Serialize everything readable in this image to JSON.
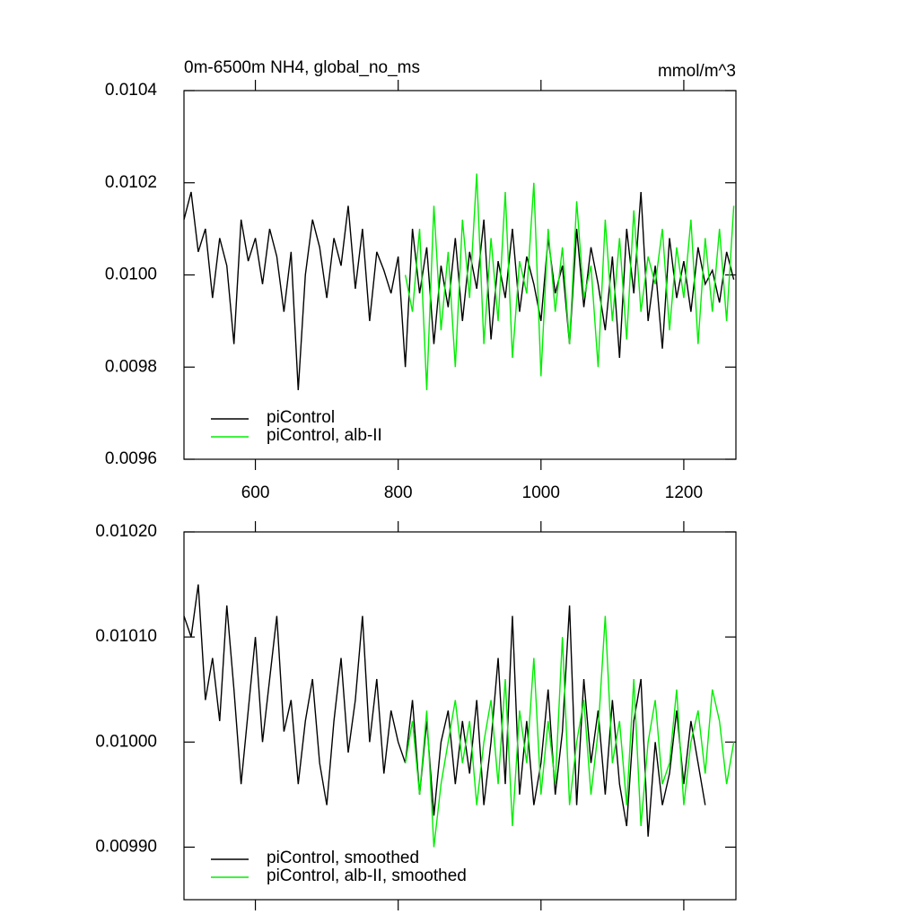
{
  "chart_data": [
    {
      "type": "line",
      "title": "0m-6500m NH4, global_no_ms",
      "units": "mmol/m^3",
      "xlim": [
        500,
        1273
      ],
      "xticks": [
        600,
        800,
        1000,
        1200
      ],
      "ylim": [
        0.0096,
        0.0104
      ],
      "yticks": [
        0.0096,
        0.0098,
        {
          "value": 0.01,
          "label": "0.0100"
        },
        0.0102,
        0.0104
      ],
      "legend": "lower left",
      "series": [
        {
          "name": "piControl",
          "color": "#000000",
          "x": [
            500,
            510,
            520,
            530,
            540,
            550,
            560,
            570,
            580,
            590,
            600,
            610,
            620,
            630,
            640,
            650,
            660,
            670,
            680,
            690,
            700,
            710,
            720,
            730,
            740,
            750,
            760,
            770,
            780,
            790,
            800,
            810,
            820,
            830,
            840,
            850,
            860,
            870,
            880,
            890,
            900,
            910,
            920,
            930,
            940,
            950,
            960,
            970,
            980,
            990,
            1000,
            1010,
            1020,
            1030,
            1040,
            1050,
            1060,
            1070,
            1080,
            1090,
            1100,
            1110,
            1120,
            1130,
            1140,
            1150,
            1160,
            1170,
            1180,
            1190,
            1200,
            1210,
            1220,
            1230,
            1240,
            1250,
            1260,
            1270
          ],
          "values": [
            0.01012,
            0.01018,
            0.01005,
            0.0101,
            0.00995,
            0.01008,
            0.01002,
            0.00985,
            0.01012,
            0.01003,
            0.01008,
            0.00998,
            0.0101,
            0.01004,
            0.00992,
            0.01005,
            0.00975,
            0.01,
            0.01012,
            0.01006,
            0.00995,
            0.01008,
            0.01002,
            0.01015,
            0.00997,
            0.0101,
            0.0099,
            0.01005,
            0.01001,
            0.00996,
            0.01004,
            0.0098,
            0.0101,
            0.00996,
            0.01006,
            0.00985,
            0.01002,
            0.00993,
            0.01008,
            0.0099,
            0.01005,
            0.00997,
            0.01012,
            0.00986,
            0.01003,
            0.00995,
            0.0101,
            0.00992,
            0.01004,
            0.00998,
            0.0099,
            0.01008,
            0.00996,
            0.01002,
            0.00985,
            0.0101,
            0.00993,
            0.01006,
            0.00998,
            0.00988,
            0.01004,
            0.00982,
            0.0101,
            0.00996,
            0.01018,
            0.0099,
            0.01002,
            0.00984,
            0.01008,
            0.00995,
            0.01003,
            0.00992,
            0.01006,
            0.00998,
            0.01001,
            0.00994,
            0.01005,
            0.00999
          ]
        },
        {
          "name": "piControl, alb-II",
          "color": "#00ee00",
          "x": [
            810,
            820,
            830,
            840,
            850,
            860,
            870,
            880,
            890,
            900,
            910,
            920,
            930,
            940,
            950,
            960,
            970,
            980,
            990,
            1000,
            1010,
            1020,
            1030,
            1040,
            1050,
            1060,
            1070,
            1080,
            1090,
            1100,
            1110,
            1120,
            1130,
            1140,
            1150,
            1160,
            1170,
            1180,
            1190,
            1200,
            1210,
            1220,
            1230,
            1240,
            1250,
            1260,
            1270
          ],
          "values": [
            0.01,
            0.00992,
            0.0101,
            0.00975,
            0.01015,
            0.00988,
            0.01005,
            0.0098,
            0.01012,
            0.00995,
            0.01022,
            0.00985,
            0.01008,
            0.0099,
            0.01018,
            0.00982,
            0.01003,
            0.00996,
            0.0102,
            0.00978,
            0.0101,
            0.00992,
            0.01006,
            0.00985,
            0.01016,
            0.00995,
            0.01002,
            0.0098,
            0.01012,
            0.0099,
            0.01008,
            0.00986,
            0.01014,
            0.00992,
            0.01004,
            0.00998,
            0.0101,
            0.00988,
            0.01006,
            0.00995,
            0.01012,
            0.00985,
            0.01008,
            0.00992,
            0.0101,
            0.0099,
            0.01015
          ]
        }
      ]
    },
    {
      "type": "line",
      "xlim": [
        500,
        1273
      ],
      "xticks": [
        600,
        800,
        1000,
        1200
      ],
      "ylim": [
        0.00985,
        0.0102
      ],
      "yticks": [
        {
          "value": 0.0099,
          "label": "0.00990"
        },
        {
          "value": 0.01,
          "label": "0.01000"
        },
        {
          "value": 0.0101,
          "label": "0.01010"
        },
        {
          "value": 0.0102,
          "label": "0.01020"
        }
      ],
      "legend": "lower left",
      "series": [
        {
          "name": "piControl, smoothed",
          "color": "#000000",
          "x": [
            500,
            510,
            520,
            530,
            540,
            550,
            560,
            570,
            580,
            590,
            600,
            610,
            620,
            630,
            640,
            650,
            660,
            670,
            680,
            690,
            700,
            710,
            720,
            730,
            740,
            750,
            760,
            770,
            780,
            790,
            800,
            810,
            820,
            830,
            840,
            850,
            860,
            870,
            880,
            890,
            900,
            910,
            920,
            930,
            940,
            950,
            960,
            970,
            980,
            990,
            1000,
            1010,
            1020,
            1030,
            1040,
            1050,
            1060,
            1070,
            1080,
            1090,
            1100,
            1110,
            1120,
            1130,
            1140,
            1150,
            1160,
            1170,
            1180,
            1190,
            1200,
            1210,
            1220,
            1230
          ],
          "values": [
            0.01012,
            0.0101,
            0.01015,
            0.01004,
            0.01008,
            0.01002,
            0.01013,
            0.01005,
            0.00996,
            0.01003,
            0.0101,
            0.01,
            0.01006,
            0.01012,
            0.01001,
            0.01004,
            0.00996,
            0.01002,
            0.01006,
            0.00998,
            0.00994,
            0.01002,
            0.01008,
            0.00999,
            0.01004,
            0.01012,
            0.01,
            0.01006,
            0.00997,
            0.01003,
            0.01,
            0.00998,
            0.01004,
            0.00995,
            0.01002,
            0.00993,
            0.01,
            0.01003,
            0.00996,
            0.01002,
            0.00997,
            0.01004,
            0.00994,
            0.01,
            0.01008,
            0.00996,
            0.01012,
            0.00995,
            0.01002,
            0.00994,
            0.00998,
            0.01005,
            0.00995,
            0.01001,
            0.01013,
            0.00994,
            0.01006,
            0.00998,
            0.01003,
            0.00995,
            0.01004,
            0.00996,
            0.00992,
            0.01002,
            0.01006,
            0.00991,
            0.01,
            0.00994,
            0.00997,
            0.01003,
            0.00996,
            0.01002,
            0.00998,
            0.00994
          ]
        },
        {
          "name": "piControl, alb-II, smoothed",
          "color": "#00ee00",
          "x": [
            810,
            820,
            830,
            840,
            850,
            860,
            870,
            880,
            890,
            900,
            910,
            920,
            930,
            940,
            950,
            960,
            970,
            980,
            990,
            1000,
            1010,
            1020,
            1030,
            1040,
            1050,
            1060,
            1070,
            1080,
            1090,
            1100,
            1110,
            1120,
            1130,
            1140,
            1150,
            1160,
            1170,
            1180,
            1190,
            1200,
            1210,
            1220,
            1230,
            1240,
            1250,
            1260,
            1270
          ],
          "values": [
            0.00998,
            0.01002,
            0.00995,
            0.01003,
            0.0099,
            0.00996,
            0.01,
            0.01004,
            0.00998,
            0.01002,
            0.00994,
            0.01,
            0.01004,
            0.00996,
            0.01006,
            0.00992,
            0.01003,
            0.00998,
            0.01008,
            0.00995,
            0.01002,
            0.00996,
            0.0101,
            0.00994,
            0.01,
            0.01004,
            0.00995,
            0.01001,
            0.01012,
            0.00998,
            0.01002,
            0.00994,
            0.01006,
            0.00992,
            0.01,
            0.01004,
            0.00996,
            0.00998,
            0.01005,
            0.00994,
            0.01,
            0.01003,
            0.00997,
            0.01005,
            0.01002,
            0.00996,
            0.01
          ]
        }
      ]
    }
  ]
}
